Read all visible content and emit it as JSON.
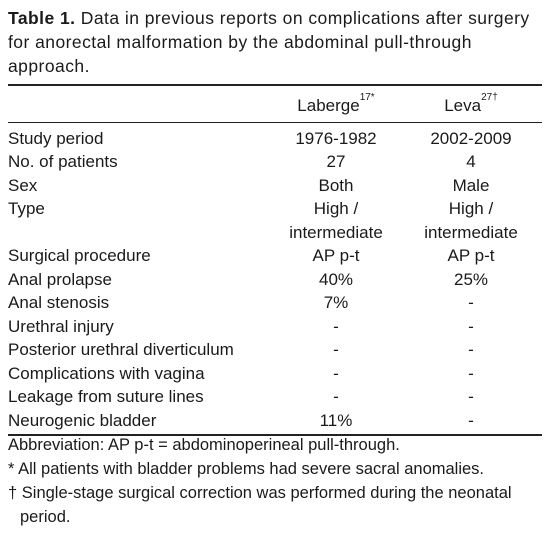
{
  "caption": {
    "label": "Table 1.",
    "text": "Data in previous reports on complications after surgery for anorectal malformation by the abdominal pull-through approach."
  },
  "table": {
    "columns": [
      {
        "name": "Laberge",
        "sup": "17*"
      },
      {
        "name": "Leva",
        "sup": "27†"
      }
    ],
    "rows": [
      [
        "Study period",
        "1976-1982",
        "2002-2009"
      ],
      [
        "No. of patients",
        "27",
        "4"
      ],
      [
        "Sex",
        "Both",
        "Male"
      ],
      [
        "Type",
        "High / intermediate",
        "High / intermediate"
      ],
      [
        "Surgical procedure",
        "AP p-t",
        "AP p-t"
      ],
      [
        "Anal prolapse",
        "40%",
        "25%"
      ],
      [
        "Anal stenosis",
        "7%",
        "-"
      ],
      [
        "Urethral injury",
        "-",
        "-"
      ],
      [
        "Posterior urethral diverticulum",
        "-",
        "-"
      ],
      [
        "Complications with vagina",
        "-",
        "-"
      ],
      [
        "Leakage from suture lines",
        "-",
        "-"
      ],
      [
        "Neurogenic bladder",
        "11%",
        "-"
      ]
    ]
  },
  "footnotes": [
    {
      "mark": "",
      "text": "Abbreviation: AP p-t = abdominoperineal pull-through."
    },
    {
      "mark": "*",
      "text": "All patients with bladder problems had severe sacral anomalies."
    },
    {
      "mark": "†",
      "text": "Single-stage surgical correction was performed during the neonatal period."
    }
  ]
}
